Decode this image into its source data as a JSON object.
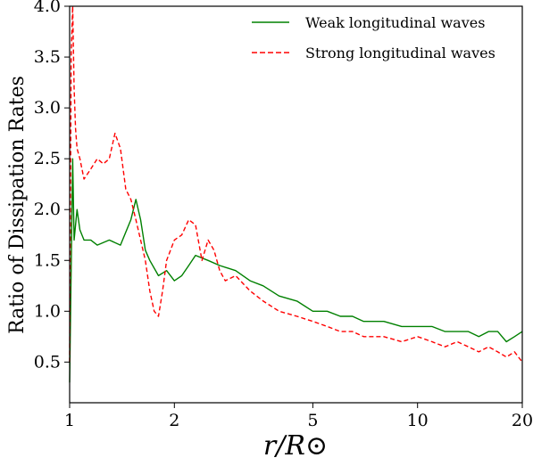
{
  "chart_data": {
    "type": "line",
    "xlabel": "r/R⊙",
    "ylabel": "Ratio of Dissipation Rates",
    "x_scale": "log",
    "xlim": [
      1,
      20
    ],
    "ylim": [
      0.1,
      4.0
    ],
    "x_ticks": [
      1,
      2,
      5,
      10,
      20
    ],
    "x_tick_labels": [
      "1",
      "2",
      "5",
      "10",
      "20"
    ],
    "y_ticks": [
      0.5,
      1.0,
      1.5,
      2.0,
      2.5,
      3.0,
      3.5,
      4.0
    ],
    "y_tick_labels": [
      "0.5",
      "1.0",
      "1.5",
      "2.0",
      "2.5",
      "3.0",
      "3.5",
      "4.0"
    ],
    "grid": false,
    "legend_position": "top-right",
    "series": [
      {
        "name": "Weak longitudinal waves",
        "color": "#008000",
        "line_style": "solid",
        "x": [
          1.0,
          1.02,
          1.03,
          1.05,
          1.07,
          1.1,
          1.15,
          1.2,
          1.3,
          1.4,
          1.5,
          1.55,
          1.6,
          1.65,
          1.7,
          1.8,
          1.9,
          2.0,
          2.1,
          2.2,
          2.3,
          2.5,
          2.7,
          3.0,
          3.3,
          3.6,
          4.0,
          4.5,
          5.0,
          5.5,
          6.0,
          6.5,
          7.0,
          8.0,
          9.0,
          10.0,
          11.0,
          12.0,
          13.0,
          14.0,
          15.0,
          16.0,
          17.0,
          18.0,
          19.0,
          20.0
        ],
        "y": [
          0.3,
          2.5,
          1.7,
          2.0,
          1.8,
          1.7,
          1.7,
          1.65,
          1.7,
          1.65,
          1.9,
          2.1,
          1.9,
          1.6,
          1.5,
          1.35,
          1.4,
          1.3,
          1.35,
          1.45,
          1.55,
          1.5,
          1.45,
          1.4,
          1.3,
          1.25,
          1.15,
          1.1,
          1.0,
          1.0,
          0.95,
          0.95,
          0.9,
          0.9,
          0.85,
          0.85,
          0.85,
          0.8,
          0.8,
          0.8,
          0.75,
          0.8,
          0.8,
          0.7,
          0.75,
          0.8
        ]
      },
      {
        "name": "Strong longitudinal waves",
        "color": "#ff0000",
        "line_style": "dashed",
        "x": [
          1.0,
          1.01,
          1.02,
          1.03,
          1.04,
          1.05,
          1.07,
          1.1,
          1.15,
          1.2,
          1.25,
          1.3,
          1.35,
          1.4,
          1.45,
          1.5,
          1.55,
          1.6,
          1.65,
          1.7,
          1.75,
          1.8,
          1.85,
          1.9,
          1.95,
          2.0,
          2.1,
          2.2,
          2.3,
          2.4,
          2.5,
          2.6,
          2.7,
          2.8,
          3.0,
          3.3,
          3.6,
          4.0,
          4.5,
          5.0,
          5.5,
          6.0,
          6.5,
          7.0,
          8.0,
          9.0,
          10.0,
          11.0,
          12.0,
          13.0,
          14.0,
          15.0,
          16.0,
          17.0,
          18.0,
          19.0,
          20.0
        ],
        "y": [
          0.5,
          3.5,
          4.0,
          3.2,
          2.8,
          2.6,
          2.5,
          2.3,
          2.4,
          2.5,
          2.45,
          2.5,
          2.75,
          2.6,
          2.2,
          2.1,
          1.9,
          1.7,
          1.5,
          1.2,
          1.0,
          0.95,
          1.2,
          1.5,
          1.6,
          1.7,
          1.75,
          1.9,
          1.85,
          1.5,
          1.7,
          1.6,
          1.4,
          1.3,
          1.35,
          1.2,
          1.1,
          1.0,
          0.95,
          0.9,
          0.85,
          0.8,
          0.8,
          0.75,
          0.75,
          0.7,
          0.75,
          0.7,
          0.65,
          0.7,
          0.65,
          0.6,
          0.65,
          0.6,
          0.55,
          0.6,
          0.5
        ]
      }
    ]
  }
}
